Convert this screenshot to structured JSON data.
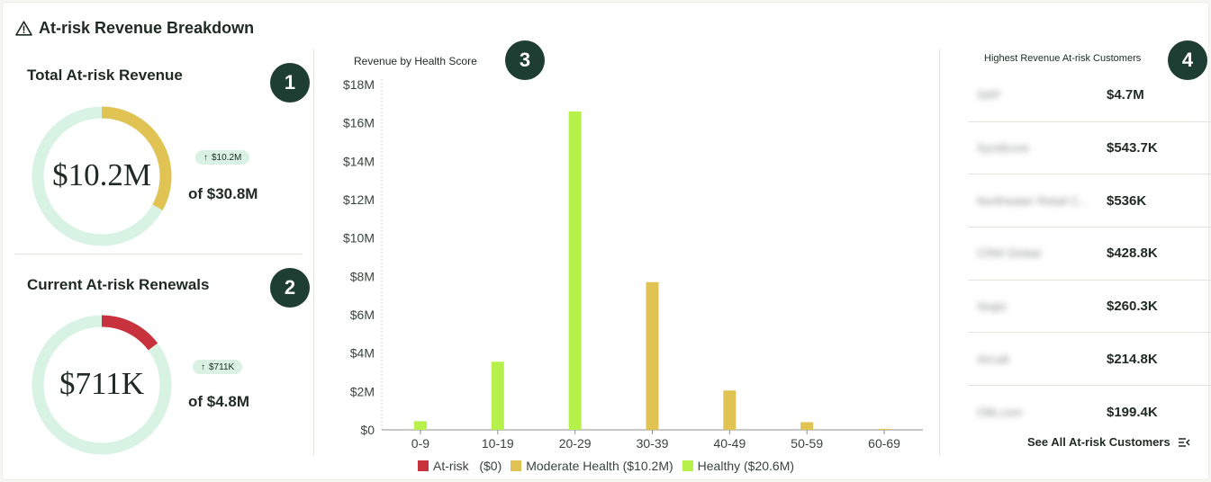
{
  "header": {
    "title": "At-risk Revenue Breakdown"
  },
  "total_revenue": {
    "title": "Total At-risk Revenue",
    "badge": "1",
    "value": "$10.2M",
    "delta": "$10.2M",
    "of_text": "of $30.8M",
    "fraction": 0.331,
    "color": "#e1c354"
  },
  "renewals": {
    "title": "Current At-risk Renewals",
    "badge": "2",
    "value": "$711K",
    "delta": "$711K",
    "of_text": "of $4.8M",
    "fraction": 0.148,
    "color": "#c8323d"
  },
  "track_color": "#d8f2e4",
  "chart_data": {
    "type": "bar",
    "title": "Revenue by Health Score",
    "badge": "3",
    "categories": [
      "0-9",
      "10-19",
      "20-29",
      "30-39",
      "40-49",
      "50-59",
      "60-69"
    ],
    "ylim": [
      0,
      18
    ],
    "yticks": [
      "$0",
      "$2M",
      "$4M",
      "$6M",
      "$8M",
      "$10M",
      "$12M",
      "$14M",
      "$16M",
      "$18M"
    ],
    "series": [
      {
        "name": "At-risk",
        "legend": "At-risk   ($0)",
        "color": "#c8323d",
        "values": [
          0,
          0,
          0,
          0,
          0,
          0,
          0
        ]
      },
      {
        "name": "Moderate Health",
        "legend": "Moderate Health ($10.2M)",
        "color": "#e1c354",
        "values": [
          0,
          0,
          0,
          7.7,
          2.05,
          0.4,
          0.05
        ]
      },
      {
        "name": "Healthy",
        "legend": "Healthy ($20.6M)",
        "color": "#b5f04b",
        "values": [
          0.45,
          3.55,
          16.6,
          0,
          0,
          0,
          0
        ]
      }
    ]
  },
  "customers": {
    "title": "Highest Revenue At-risk Customers",
    "badge": "4",
    "rows": [
      {
        "name": "SAP",
        "value": "$4.7M"
      },
      {
        "name": "Syndicore",
        "value": "$543.7K"
      },
      {
        "name": "Northwater Retail C...",
        "value": "$536K"
      },
      {
        "name": "CRM Global",
        "value": "$428.8K"
      },
      {
        "name": "Segio",
        "value": "$260.3K"
      },
      {
        "name": "Aircall",
        "value": "$214.8K"
      },
      {
        "name": "Olik.com",
        "value": "$199.4K"
      }
    ],
    "see_all": "See All At-risk Customers"
  }
}
